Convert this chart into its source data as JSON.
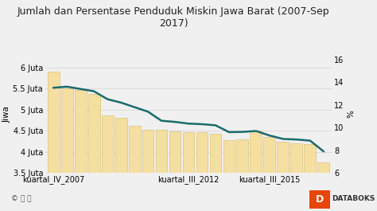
{
  "title": "Jumlah dan Persentase Penduduk Miskin Jawa Barat (2007-Sep\n2017)",
  "xlabel_ticks": [
    "kuartal_IV_2007",
    "kuartal_III_2012",
    "kuartal_III_2015"
  ],
  "xlabel_tick_positions": [
    0,
    10,
    16
  ],
  "ylabel_left": "Jiwa",
  "ylabel_right": "%",
  "bar_color": "#F5DFA0",
  "bar_edgecolor": "#D4B86A",
  "line_color": "#1B6B6B",
  "background_color": "#f0f0f0",
  "plot_bg_color": "#f0f0f0",
  "ylim_left": [
    3500000,
    6300000
  ],
  "ylim_right": [
    6,
    16.4
  ],
  "yticks_left": [
    3500000,
    4000000,
    4500000,
    5000000,
    5500000,
    6000000
  ],
  "ytick_labels_left": [
    "3.5 Juta",
    "4 Juta",
    "4.5 Juta",
    "5 Juta",
    "5.5 Juta",
    "6 Juta"
  ],
  "yticks_right": [
    6,
    8,
    10,
    12,
    14,
    16
  ],
  "bar_values": [
    5900000,
    5500000,
    5460000,
    5380000,
    4870000,
    4800000,
    4620000,
    4520000,
    4530000,
    4480000,
    4460000,
    4460000,
    4430000,
    4280000,
    4290000,
    4500000,
    4360000,
    4250000,
    4200000,
    4180000,
    3750000
  ],
  "line_values": [
    13.5,
    13.6,
    13.4,
    13.2,
    12.5,
    12.2,
    11.8,
    11.4,
    10.6,
    10.5,
    10.35,
    10.3,
    10.2,
    9.6,
    9.62,
    9.7,
    9.3,
    9.0,
    8.95,
    8.85,
    7.9
  ],
  "grid_color": "#d8d8d8",
  "title_fontsize": 9,
  "tick_fontsize": 7,
  "axis_label_fontsize": 7.5
}
